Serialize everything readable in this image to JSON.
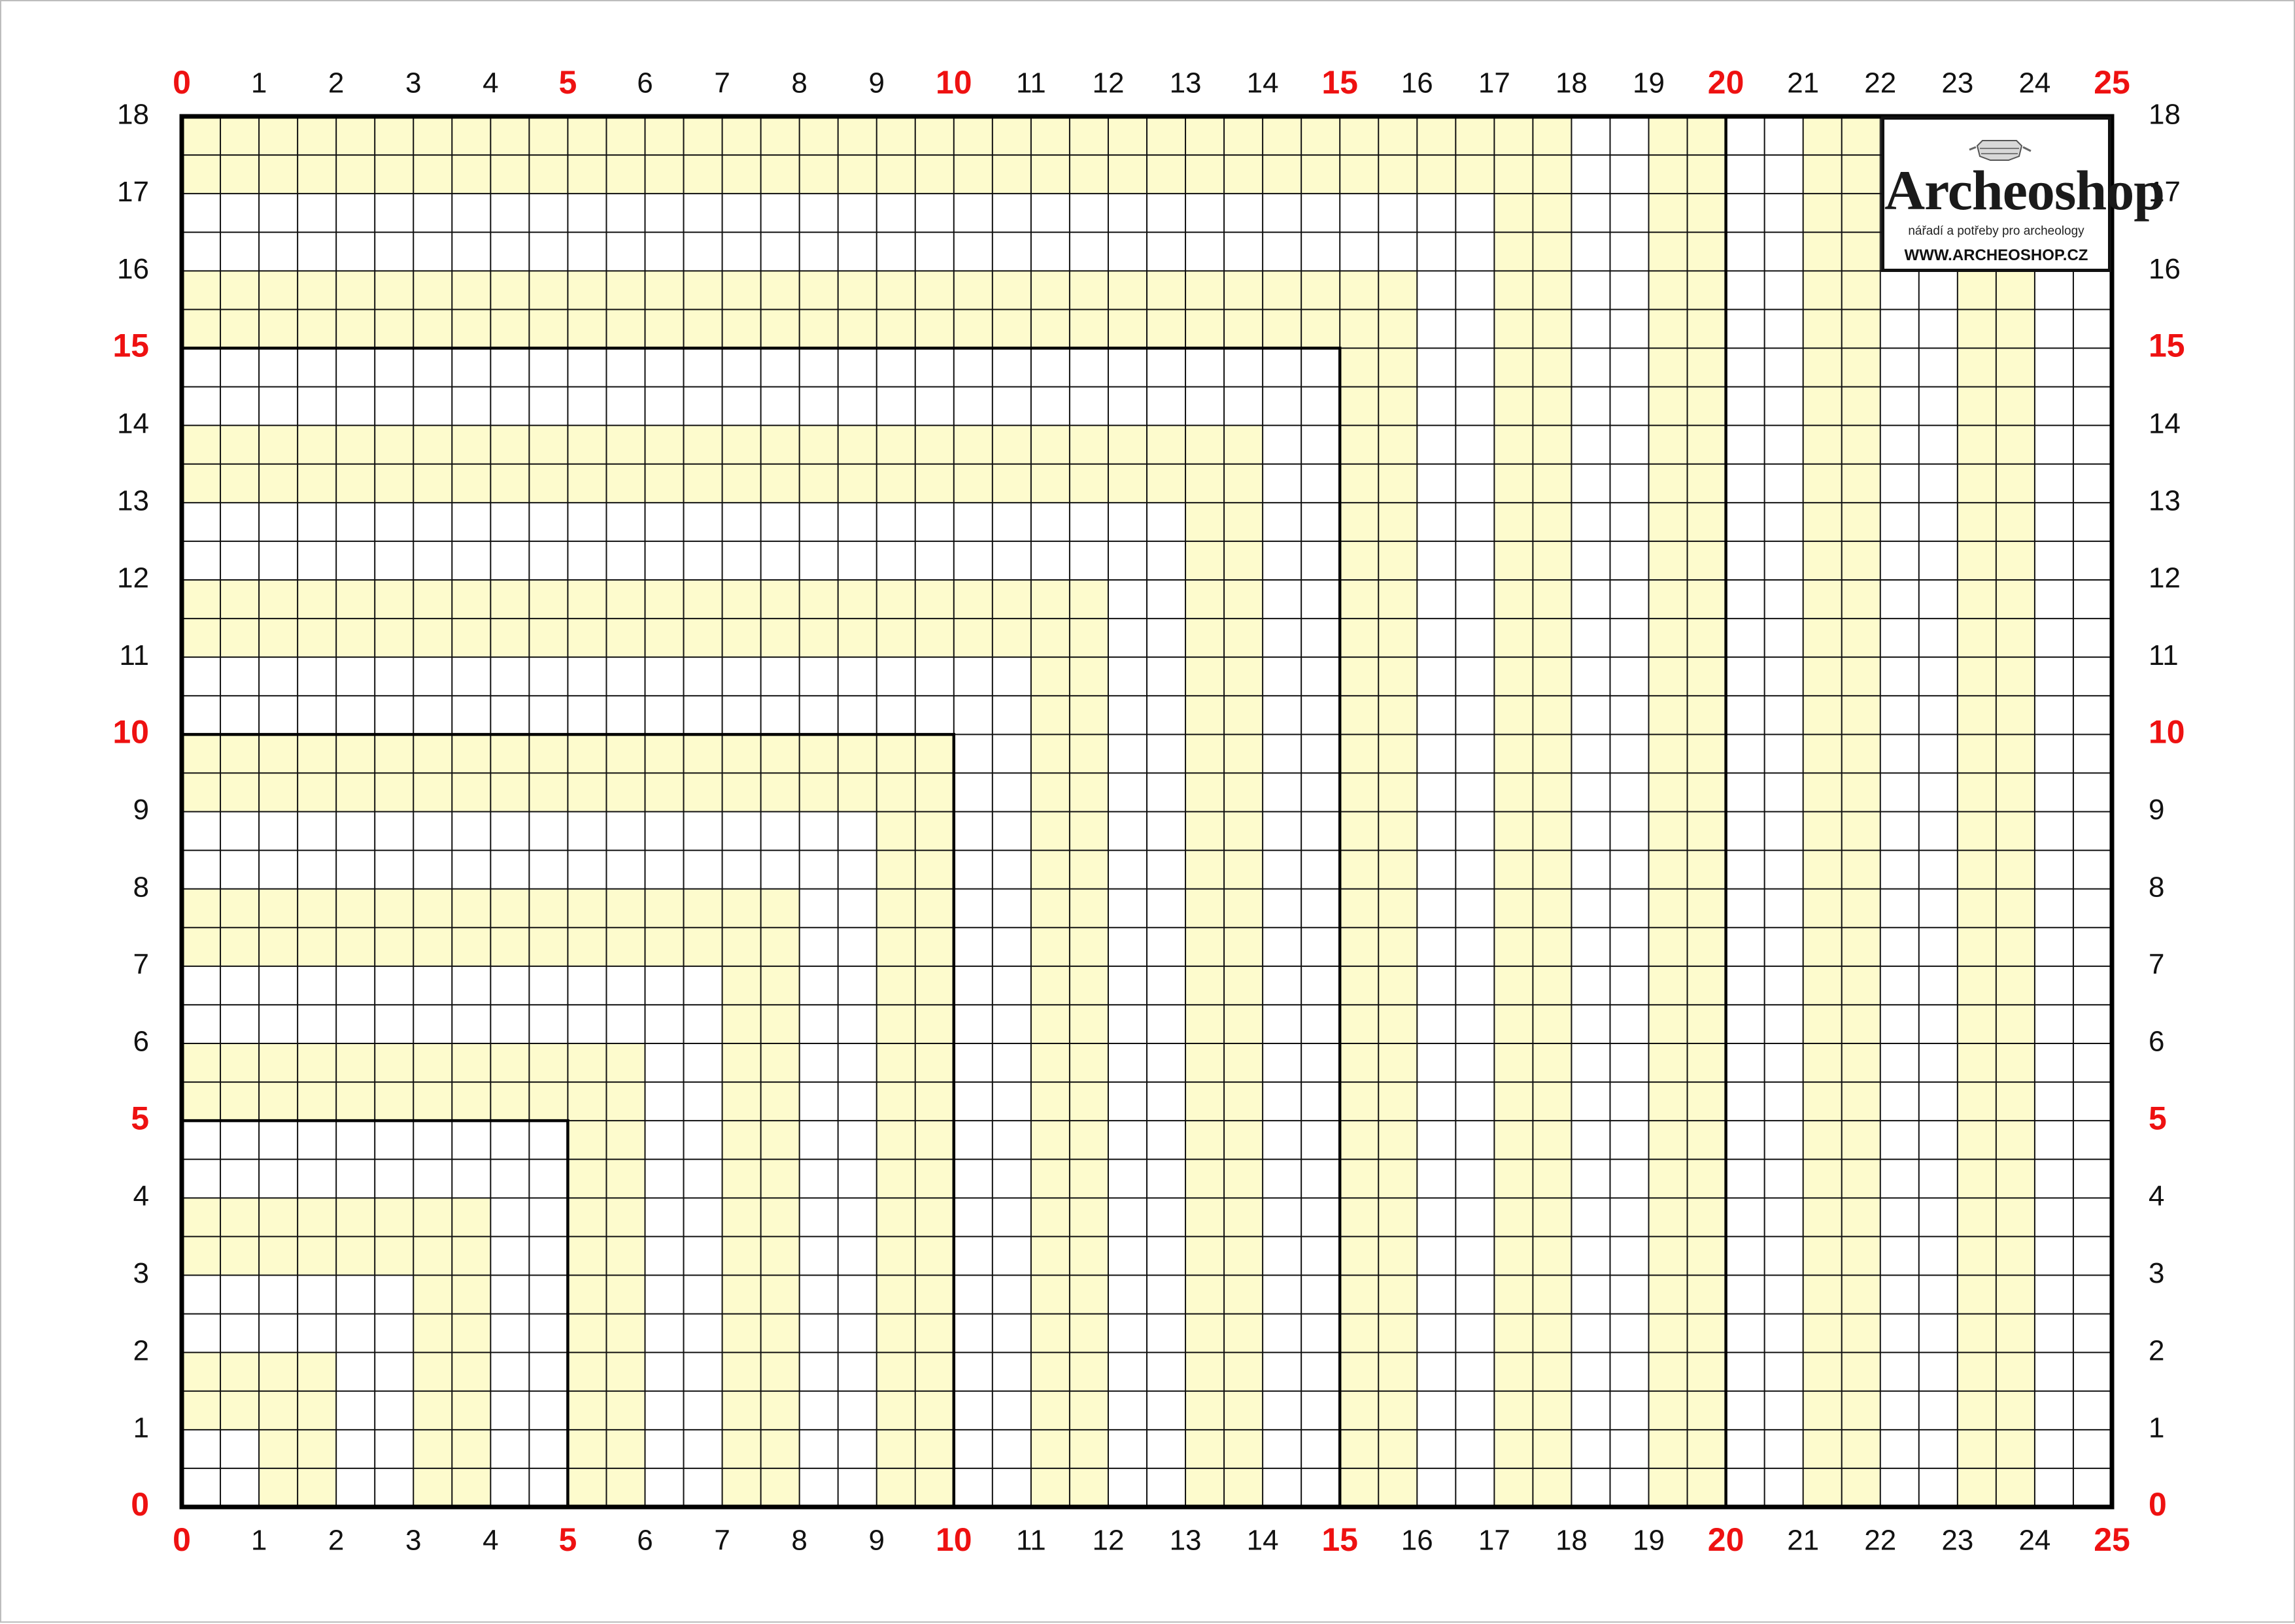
{
  "grid": {
    "columns_units": 25,
    "rows_units": 18,
    "subdivisions_per_unit": 2,
    "fill_color": "#fdfbcd",
    "line_color": "#111111",
    "major_label_color": "#ee1111",
    "major_every": 5,
    "x_labels": [
      "0",
      "1",
      "2",
      "3",
      "4",
      "5",
      "6",
      "7",
      "8",
      "9",
      "10",
      "11",
      "12",
      "13",
      "14",
      "15",
      "16",
      "17",
      "18",
      "19",
      "20",
      "21",
      "22",
      "23",
      "24",
      "25"
    ],
    "y_labels": [
      "0",
      "1",
      "2",
      "3",
      "4",
      "5",
      "6",
      "7",
      "8",
      "9",
      "10",
      "11",
      "12",
      "13",
      "14",
      "15",
      "16",
      "17",
      "18"
    ],
    "highlight_bands": [
      {
        "name": "band-1",
        "x": [
          0,
          1
        ],
        "y": [
          1,
          2
        ]
      },
      {
        "name": "band-2",
        "x": [
          1,
          2
        ],
        "y": [
          0,
          2
        ]
      },
      {
        "name": "band-3",
        "x": [
          0,
          4
        ],
        "y": [
          3,
          4
        ]
      },
      {
        "name": "band-4",
        "x": [
          3,
          4
        ],
        "y": [
          0,
          4
        ]
      },
      {
        "name": "band-5",
        "x": [
          0,
          6
        ],
        "y": [
          5,
          6
        ]
      },
      {
        "name": "band-6",
        "x": [
          5,
          6
        ],
        "y": [
          0,
          6
        ]
      },
      {
        "name": "band-7",
        "x": [
          0,
          8
        ],
        "y": [
          7,
          8
        ]
      },
      {
        "name": "band-8",
        "x": [
          7,
          8
        ],
        "y": [
          0,
          8
        ]
      },
      {
        "name": "band-9",
        "x": [
          0,
          10
        ],
        "y": [
          9,
          10
        ]
      },
      {
        "name": "band-10",
        "x": [
          9,
          10
        ],
        "y": [
          0,
          10
        ]
      },
      {
        "name": "band-11",
        "x": [
          0,
          12
        ],
        "y": [
          11,
          12
        ]
      },
      {
        "name": "band-12",
        "x": [
          11,
          12
        ],
        "y": [
          0,
          12
        ]
      },
      {
        "name": "band-13",
        "x": [
          0,
          14
        ],
        "y": [
          13,
          14
        ]
      },
      {
        "name": "band-14",
        "x": [
          13,
          14
        ],
        "y": [
          0,
          14
        ]
      },
      {
        "name": "band-15",
        "x": [
          0,
          16
        ],
        "y": [
          15,
          16
        ]
      },
      {
        "name": "band-16",
        "x": [
          15,
          16
        ],
        "y": [
          0,
          16
        ]
      },
      {
        "name": "band-17",
        "x": [
          0,
          18
        ],
        "y": [
          17,
          18
        ]
      },
      {
        "name": "band-18",
        "x": [
          17,
          18
        ],
        "y": [
          0,
          18
        ]
      },
      {
        "name": "band-19",
        "x": [
          19,
          20
        ],
        "y": [
          0,
          18
        ]
      },
      {
        "name": "band-20",
        "x": [
          21,
          22
        ],
        "y": [
          0,
          18
        ]
      },
      {
        "name": "band-21",
        "x": [
          23,
          24
        ],
        "y": [
          0,
          16
        ]
      }
    ],
    "boundary_squares": [
      5,
      10,
      15,
      20
    ]
  },
  "logo": {
    "brand": "Archeoshop",
    "tagline": "nářadí a potřeby pro archeology",
    "url": "WWW.ARCHEOSHOP.CZ"
  }
}
